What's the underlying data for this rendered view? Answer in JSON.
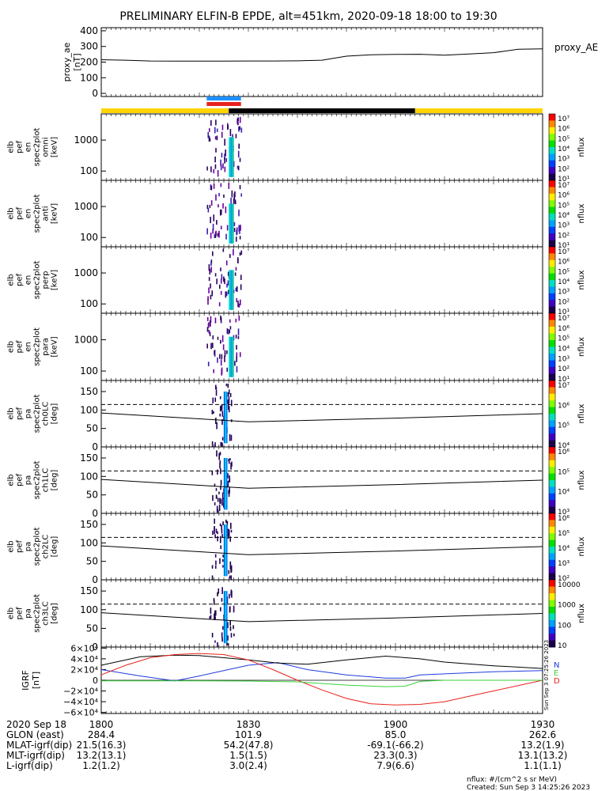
{
  "title": "PRELIMINARY ELFIN-B EPDE, alt=451km, 2020-09-18 18:00 to 19:30",
  "colors": {
    "yellow": "#ffd400",
    "black": "#000000",
    "blue": "#1e90ff",
    "red": "#e8231f",
    "green": "#39d23b",
    "darkblue": "#1f3cdc"
  },
  "chart_data": [
    {
      "id": "proxy_ae",
      "type": "line",
      "ylabel": [
        "proxy_ae",
        "[nT]"
      ],
      "legend": "proxy_AE",
      "yticks": [
        "400",
        "300",
        "200",
        "100",
        "0"
      ],
      "ytick_values": [
        400,
        300,
        200,
        100,
        0
      ],
      "ylim": [
        -20,
        420
      ],
      "x": [
        0,
        5,
        10,
        15,
        20,
        25,
        30,
        35,
        40,
        45,
        50,
        55,
        60,
        65,
        70,
        75,
        80,
        85,
        90
      ],
      "values": [
        215,
        212,
        207,
        206,
        206,
        206,
        207,
        207,
        208,
        212,
        238,
        247,
        249,
        250,
        244,
        252,
        260,
        282,
        285
      ]
    },
    {
      "id": "science_bar",
      "type": "bar",
      "segments": [
        {
          "color": "yellow",
          "start": 0,
          "end": 26
        },
        {
          "color": "black",
          "start": 26,
          "end": 64
        },
        {
          "color": "yellow",
          "start": 64,
          "end": 90
        }
      ],
      "markers": [
        {
          "color": "blue",
          "start": 21.5,
          "end": 28.5
        },
        {
          "color": "red",
          "start": 21.5,
          "end": 28.5
        }
      ]
    },
    {
      "id": "en_omni",
      "type": "heatmap",
      "ylabel": [
        "elb",
        "pef",
        "en",
        "spec2plot",
        "omni",
        "[keV]"
      ],
      "yticks": [
        "1000",
        "100"
      ],
      "ytick_values": [
        1000,
        100
      ],
      "ylog": [
        50,
        7000
      ],
      "colorbar": {
        "label": "nflux",
        "ticks": [
          "10⁷",
          "10⁶",
          "10⁵",
          "10⁴",
          "10³",
          "10²",
          "10¹"
        ]
      },
      "activity_window": [
        21.5,
        28.5
      ]
    },
    {
      "id": "en_anti",
      "type": "heatmap",
      "ylabel": [
        "elb",
        "pef",
        "en",
        "spec2plot",
        "anti",
        "[keV]"
      ],
      "yticks": [
        "1000",
        "100"
      ],
      "ytick_values": [
        1000,
        100
      ],
      "ylog": [
        50,
        7000
      ],
      "colorbar": {
        "label": "nflux",
        "ticks": [
          "10⁷",
          "10⁶",
          "10⁵",
          "10⁴",
          "10³",
          "10²",
          "10¹"
        ]
      },
      "activity_window": [
        21.5,
        28.5
      ]
    },
    {
      "id": "en_perp",
      "type": "heatmap",
      "ylabel": [
        "elb",
        "pef",
        "en",
        "spec2plot",
        "perp",
        "[keV]"
      ],
      "yticks": [
        "1000",
        "100"
      ],
      "ytick_values": [
        1000,
        100
      ],
      "ylog": [
        50,
        7000
      ],
      "colorbar": {
        "label": "nflux",
        "ticks": [
          "10⁷",
          "10⁶",
          "10⁵",
          "10⁴",
          "10³",
          "10²",
          "10¹"
        ]
      },
      "activity_window": [
        21.5,
        28.5
      ]
    },
    {
      "id": "en_para",
      "type": "heatmap",
      "ylabel": [
        "elb",
        "pef",
        "en",
        "spec2plot",
        "para",
        "[keV]"
      ],
      "yticks": [
        "1000",
        "100"
      ],
      "ytick_values": [
        1000,
        100
      ],
      "ylog": [
        50,
        7000
      ],
      "colorbar": {
        "label": "nflux",
        "ticks": [
          "10⁷",
          "10⁶",
          "10⁵",
          "10⁴",
          "10³",
          "10²",
          "10¹"
        ]
      },
      "activity_window": [
        21.5,
        28.5
      ]
    },
    {
      "id": "pa_ch0",
      "type": "heatmap",
      "ylabel": [
        "elb",
        "pef",
        "pa",
        "spec2plot",
        "ch0LC",
        "[deg]"
      ],
      "yticks": [
        "150",
        "100",
        "50",
        "0"
      ],
      "ytick_values": [
        150,
        100,
        50,
        0
      ],
      "ylim": [
        0,
        180
      ],
      "colorbar": {
        "label": "nflux",
        "ticks": [
          "10⁷",
          "10⁶",
          "10⁵",
          "10⁴"
        ]
      },
      "lc_line": {
        "x": [
          0,
          20,
          30,
          60,
          90
        ],
        "y": [
          92,
          76,
          68,
          78,
          90
        ]
      },
      "alc_line": {
        "x": [
          0,
          90
        ],
        "y": [
          115,
          115
        ]
      },
      "activity_window": [
        22.5,
        26.5
      ]
    },
    {
      "id": "pa_ch1",
      "type": "heatmap",
      "ylabel": [
        "elb",
        "pef",
        "pa",
        "spec2plot",
        "ch1LC",
        "[deg]"
      ],
      "yticks": [
        "150",
        "100",
        "50",
        "0"
      ],
      "ytick_values": [
        150,
        100,
        50,
        0
      ],
      "ylim": [
        0,
        180
      ],
      "colorbar": {
        "label": "nflux",
        "ticks": [
          "10⁶",
          "10⁵",
          "10⁴",
          "10³"
        ]
      },
      "lc_line": {
        "x": [
          0,
          20,
          30,
          60,
          90
        ],
        "y": [
          92,
          76,
          68,
          78,
          90
        ]
      },
      "alc_line": {
        "x": [
          0,
          90
        ],
        "y": [
          115,
          115
        ]
      },
      "activity_window": [
        22.5,
        26.5
      ]
    },
    {
      "id": "pa_ch2",
      "type": "heatmap",
      "ylabel": [
        "elb",
        "pef",
        "pa",
        "spec2plot",
        "ch2LC",
        "[deg]"
      ],
      "yticks": [
        "150",
        "100",
        "50",
        "0"
      ],
      "ytick_values": [
        150,
        100,
        50,
        0
      ],
      "ylim": [
        0,
        180
      ],
      "colorbar": {
        "label": "nflux",
        "ticks": [
          "10⁶",
          "10⁵",
          "10⁴",
          "10³",
          "10²"
        ]
      },
      "lc_line": {
        "x": [
          0,
          20,
          30,
          60,
          90
        ],
        "y": [
          92,
          76,
          68,
          78,
          90
        ]
      },
      "alc_line": {
        "x": [
          0,
          90
        ],
        "y": [
          115,
          115
        ]
      },
      "activity_window": [
        22.5,
        26.5
      ]
    },
    {
      "id": "pa_ch3",
      "type": "heatmap",
      "ylabel": [
        "elb",
        "pef",
        "pa",
        "spec2plot",
        "ch3LC",
        "[deg]"
      ],
      "yticks": [
        "150",
        "100",
        "50",
        "0"
      ],
      "ytick_values": [
        150,
        100,
        50,
        0
      ],
      "ylim": [
        0,
        180
      ],
      "colorbar": {
        "label": "nflux",
        "ticks": [
          "10000",
          "1000",
          "100",
          "10"
        ]
      },
      "lc_line": {
        "x": [
          0,
          20,
          30,
          60,
          90
        ],
        "y": [
          92,
          76,
          68,
          78,
          90
        ]
      },
      "alc_line": {
        "x": [
          0,
          90
        ],
        "y": [
          115,
          115
        ]
      },
      "activity_window": [
        22.0,
        27.0
      ]
    },
    {
      "id": "igrf",
      "type": "line",
      "ylabel": [
        "IGRF",
        "[nT]"
      ],
      "yticks": [
        "6×10⁴",
        "4×10⁴",
        "2×10⁴",
        "0",
        "−2×10⁴",
        "−4×10⁴",
        "−6×10⁴"
      ],
      "ytick_values": [
        60000,
        40000,
        20000,
        0,
        -20000,
        -40000,
        -60000
      ],
      "ylim": [
        -62000,
        62000
      ],
      "legend": [
        "N",
        "E",
        "D"
      ],
      "stamp": "Sun Sep  3 07:25:26 2023",
      "series": [
        {
          "name": "N",
          "color": "darkblue",
          "x": [
            0,
            8,
            15,
            20,
            25,
            30,
            36,
            42,
            50,
            58,
            62,
            65,
            70,
            80,
            90
          ],
          "y": [
            20000,
            8000,
            -1000,
            8000,
            18000,
            28000,
            33000,
            20000,
            10000,
            4000,
            4000,
            10000,
            12000,
            16000,
            18000
          ]
        },
        {
          "name": "E",
          "color": "black",
          "x": [
            0,
            8,
            15,
            20,
            25,
            30,
            36,
            42,
            50,
            58,
            65,
            70,
            80,
            90
          ],
          "y": [
            28000,
            44000,
            47000,
            46000,
            42000,
            38000,
            32000,
            30000,
            38000,
            45000,
            40000,
            34000,
            27000,
            22000
          ]
        },
        {
          "name": "D",
          "color": "red",
          "x": [
            0,
            5,
            10,
            15,
            20,
            25,
            30,
            35,
            40,
            45,
            50,
            55,
            60,
            65,
            70,
            75,
            80,
            85,
            90
          ],
          "y": [
            10000,
            28000,
            42000,
            48000,
            50000,
            48000,
            38000,
            20000,
            0,
            -18000,
            -34000,
            -44000,
            -46000,
            -45000,
            -40000,
            -30000,
            -20000,
            -10000,
            0
          ]
        },
        {
          "name": "Z",
          "color": "green",
          "x": [
            0,
            10,
            20,
            30,
            40,
            50,
            58,
            62,
            65,
            70,
            80,
            90
          ],
          "y": [
            -1000,
            -1000,
            -1000,
            -1500,
            -3000,
            -9000,
            -12000,
            -11000,
            -2000,
            0,
            0,
            0
          ]
        }
      ]
    }
  ],
  "time_axis": {
    "label": "2020 Sep 18",
    "ticks": [
      {
        "label": "1800",
        "min": 0
      },
      {
        "label": "1830",
        "min": 30
      },
      {
        "label": "1900",
        "min": 60
      },
      {
        "label": "1930",
        "min": 90
      }
    ],
    "rows": [
      {
        "name": "GLON (east)",
        "values": [
          "284.4",
          "101.9",
          "85.0",
          "262.6"
        ]
      },
      {
        "name": "MLAT-igrf(dip)",
        "values": [
          "21.5(16.3)",
          "54.2(47.8)",
          "-69.1(-66.2)",
          "13.2(1.9)"
        ]
      },
      {
        "name": "MLT-igrf(dip)",
        "values": [
          "13.2(13.1)",
          "1.5(1.5)",
          "23.3(0.3)",
          "13.1(13.2)"
        ]
      },
      {
        "name": "L-igrf(dip)",
        "values": [
          "1.2(1.2)",
          "3.0(2.4)",
          "7.9(6.6)",
          "1.1(1.1)"
        ]
      }
    ]
  },
  "footer": {
    "units": "nflux: #/(cm^2 s sr MeV)",
    "created": "Created: Sun Sep  3 14:25:26 2023"
  }
}
